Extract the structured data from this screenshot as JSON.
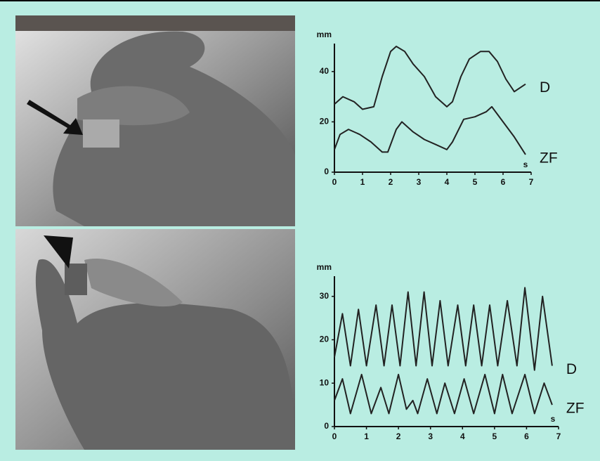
{
  "chart_data": [
    {
      "type": "line",
      "y_label": "mm",
      "x_label": "s",
      "xlim": [
        0,
        7
      ],
      "xticks": [
        0,
        1,
        2,
        3,
        4,
        5,
        6,
        7
      ],
      "ylim": [
        0,
        50
      ],
      "yticks": [
        0,
        20,
        40
      ],
      "grid": false,
      "series": [
        {
          "name": "D",
          "color": "#222222",
          "x": [
            0,
            0.3,
            0.7,
            1.0,
            1.4,
            1.7,
            2.0,
            2.2,
            2.5,
            2.8,
            3.2,
            3.6,
            4.0,
            4.2,
            4.5,
            4.8,
            5.2,
            5.5,
            5.8,
            6.1,
            6.4,
            6.8
          ],
          "values": [
            27,
            30,
            28,
            25,
            26,
            38,
            48,
            50,
            48,
            43,
            38,
            30,
            26,
            28,
            38,
            45,
            48,
            48,
            44,
            37,
            32,
            35
          ]
        },
        {
          "name": "ZF",
          "color": "#222222",
          "x": [
            0,
            0.2,
            0.5,
            0.9,
            1.3,
            1.7,
            1.9,
            2.2,
            2.4,
            2.8,
            3.2,
            3.6,
            4.0,
            4.2,
            4.6,
            5.0,
            5.4,
            5.6,
            6.0,
            6.4,
            6.8
          ],
          "values": [
            9,
            15,
            17,
            15,
            12,
            8,
            8,
            17,
            20,
            16,
            13,
            11,
            9,
            12,
            21,
            22,
            24,
            26,
            20,
            14,
            7
          ]
        }
      ]
    },
    {
      "type": "line",
      "y_label": "mm",
      "x_label": "s",
      "xlim": [
        0,
        7
      ],
      "xticks": [
        0,
        1,
        2,
        3,
        4,
        5,
        6,
        7
      ],
      "ylim": [
        0,
        34
      ],
      "yticks": [
        0,
        10,
        20,
        30
      ],
      "grid": false,
      "series": [
        {
          "name": "D",
          "color": "#222222",
          "x": [
            0,
            0.25,
            0.5,
            0.75,
            1.0,
            1.3,
            1.55,
            1.8,
            2.05,
            2.3,
            2.55,
            2.8,
            3.05,
            3.3,
            3.55,
            3.85,
            4.1,
            4.35,
            4.6,
            4.85,
            5.1,
            5.4,
            5.7,
            5.95,
            6.25,
            6.5,
            6.8
          ],
          "values": [
            16,
            26,
            14,
            27,
            14,
            28,
            14,
            28,
            14,
            31,
            14,
            31,
            14,
            29,
            14,
            28,
            14,
            28,
            14,
            28,
            14,
            29,
            14,
            32,
            13,
            30,
            14
          ]
        },
        {
          "name": "ZF",
          "color": "#222222",
          "x": [
            0,
            0.25,
            0.5,
            0.85,
            1.15,
            1.45,
            1.7,
            2.0,
            2.25,
            2.45,
            2.6,
            2.9,
            3.2,
            3.45,
            3.75,
            4.05,
            4.35,
            4.7,
            5.0,
            5.25,
            5.55,
            5.95,
            6.25,
            6.55,
            6.8
          ],
          "values": [
            6,
            11,
            3,
            12,
            3,
            9,
            3,
            12,
            4,
            6,
            3,
            11,
            3,
            10,
            3,
            11,
            3,
            12,
            3,
            12,
            3,
            12,
            3,
            10,
            5
          ]
        }
      ]
    }
  ]
}
